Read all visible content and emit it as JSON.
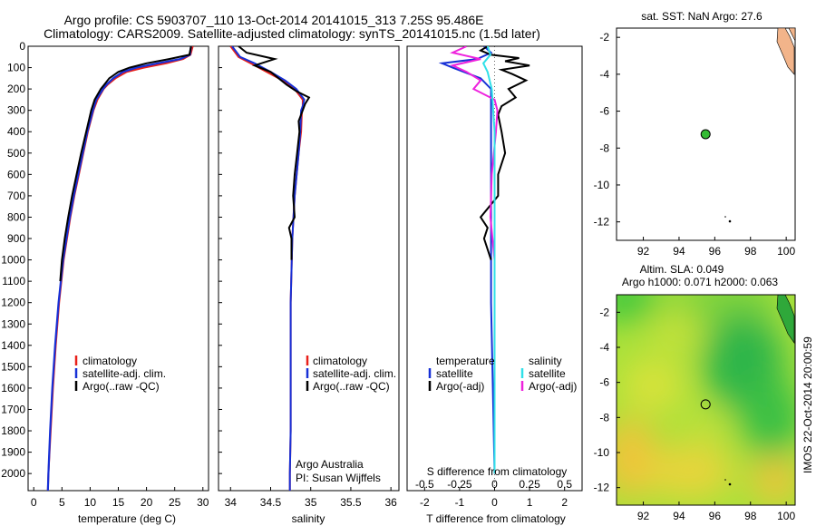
{
  "title_line1": "Argo profile: CS 5903707_110 13-Oct-2014 20141015_313 7.25S 95.486E",
  "title_line2": "Climatology: CARS2009. Satellite-adjusted climatology: synTS_20141015.nc (1.5d later)",
  "side_label": "IMOS 22-Oct-2014 20:00:59",
  "colors": {
    "climatology": "#e8201a",
    "satellite": "#1730d6",
    "argo": "#000000",
    "cyan": "#30e0e8",
    "magenta": "#ee22dd",
    "land": "#f2b48a",
    "float": "#33bb33"
  },
  "chart_data": [
    {
      "type": "line",
      "panel": "temperature",
      "xlabel": "temperature (deg C)",
      "xlim": [
        -1,
        31
      ],
      "xticks": [
        "0",
        "5",
        "10",
        "15",
        "20",
        "25",
        "30"
      ],
      "ylim": [
        0,
        2080
      ],
      "yticks": [
        "0",
        "100",
        "200",
        "300",
        "400",
        "500",
        "600",
        "700",
        "800",
        "900",
        "1000",
        "1100",
        "1200",
        "1300",
        "1400",
        "1500",
        "1600",
        "1700",
        "1800",
        "1900",
        "2000"
      ],
      "legend": [
        "climatology",
        "satellite-adj. clim.",
        "Argo(..raw -QC)"
      ],
      "series": [
        {
          "name": "climatology",
          "depth": [
            0,
            40,
            60,
            80,
            100,
            120,
            150,
            180,
            200,
            250,
            300,
            400,
            500,
            600,
            700,
            800,
            900,
            1000,
            1200,
            1400,
            1600,
            1800,
            2000,
            2080
          ],
          "values": [
            28.2,
            27.8,
            26.5,
            23.5,
            19.5,
            16.5,
            14.5,
            13.1,
            12.4,
            11.3,
            10.6,
            9.6,
            8.8,
            8.0,
            7.2,
            6.5,
            5.9,
            5.3,
            4.5,
            3.9,
            3.4,
            3.0,
            2.6,
            2.5
          ]
        },
        {
          "name": "satellite-adj. clim.",
          "depth": [
            0,
            40,
            60,
            80,
            100,
            120,
            150,
            180,
            200,
            250,
            300,
            400,
            500,
            600,
            700,
            800,
            900,
            1000,
            1200,
            1400,
            1600,
            1800,
            2000,
            2080
          ],
          "values": [
            27.9,
            27.7,
            26.0,
            22.0,
            18.2,
            15.8,
            14.1,
            12.9,
            12.3,
            11.1,
            10.5,
            9.5,
            8.7,
            7.9,
            7.1,
            6.4,
            5.8,
            5.2,
            4.4,
            3.8,
            3.3,
            2.9,
            2.6,
            2.5
          ]
        },
        {
          "name": "Argo(..raw -QC)",
          "depth": [
            0,
            40,
            60,
            80,
            100,
            120,
            150,
            180,
            200,
            250,
            300,
            400,
            500,
            600,
            700,
            800,
            900,
            1000,
            1100
          ],
          "values": [
            27.9,
            27.6,
            24.0,
            20.0,
            17.0,
            15.0,
            13.4,
            12.5,
            11.9,
            10.8,
            10.2,
            9.3,
            8.4,
            7.6,
            6.8,
            6.1,
            5.5,
            5.0,
            4.7
          ]
        }
      ]
    },
    {
      "type": "line",
      "panel": "salinity",
      "xlabel": "salinity",
      "xlim": [
        33.85,
        36.1
      ],
      "xticks": [
        "34",
        "34.5",
        "35",
        "35.5",
        "36"
      ],
      "ylim": [
        0,
        2080
      ],
      "legend": [
        "climatology",
        "satellite-adj. clim.",
        "Argo(..raw -QC)"
      ],
      "notes": [
        "Argo Australia",
        "PI: Susan Wijffels"
      ],
      "series": [
        {
          "name": "climatology",
          "depth": [
            0,
            50,
            80,
            120,
            160,
            200,
            250,
            280,
            300,
            400,
            500,
            700,
            900,
            1200,
            1500,
            1800,
            2000,
            2080
          ],
          "values": [
            34.0,
            34.1,
            34.25,
            34.45,
            34.65,
            34.8,
            34.9,
            34.9,
            34.89,
            34.88,
            34.85,
            34.8,
            34.77,
            34.75,
            34.75,
            34.75,
            34.74,
            34.74
          ]
        },
        {
          "name": "satellite-adj. clim.",
          "depth": [
            0,
            50,
            80,
            120,
            160,
            200,
            250,
            280,
            300,
            400,
            500,
            700,
            900,
            1200,
            1500,
            1800,
            2000,
            2080
          ],
          "values": [
            34.02,
            34.12,
            34.3,
            34.5,
            34.68,
            34.82,
            34.92,
            34.9,
            34.88,
            34.87,
            34.85,
            34.8,
            34.77,
            34.75,
            34.75,
            34.75,
            34.74,
            34.74
          ]
        },
        {
          "name": "Argo(..raw -QC)",
          "depth": [
            0,
            30,
            60,
            90,
            120,
            150,
            180,
            210,
            240,
            270,
            300,
            350,
            400,
            500,
            600,
            700,
            800,
            850,
            900,
            1000
          ],
          "values": [
            34.1,
            34.2,
            34.55,
            34.3,
            34.5,
            34.6,
            34.7,
            34.82,
            34.98,
            34.93,
            34.9,
            34.85,
            34.86,
            34.83,
            34.8,
            34.78,
            34.8,
            34.73,
            34.76,
            34.76
          ]
        }
      ]
    },
    {
      "type": "line",
      "panel": "difference",
      "xlabel": "T difference from climatology",
      "xlabel_top": "S difference from climatology",
      "xlim_T": [
        -2.5,
        2.5
      ],
      "xticks_T": [
        "-2",
        "-1",
        "0",
        "1",
        "2"
      ],
      "xticks_S": [
        "-0.5",
        "-0.25",
        "0",
        "0.25",
        "0.5"
      ],
      "ylim": [
        0,
        2080
      ],
      "legend_temperature": [
        "temperature",
        "satellite",
        "Argo(-adj)"
      ],
      "legend_salinity": [
        "salinity",
        "satellite",
        "Argo(-adj)"
      ],
      "series": [
        {
          "name": "temperature satellite",
          "depth": [
            0,
            30,
            60,
            80,
            100,
            150,
            200,
            300,
            500,
            800,
            1200,
            1600,
            2000
          ],
          "values": [
            -0.3,
            -0.1,
            -0.5,
            -1.5,
            -1.2,
            -0.4,
            -0.1,
            -0.1,
            -0.1,
            -0.1,
            -0.1,
            -0.05,
            0
          ]
        },
        {
          "name": "temperature Argo(-adj)",
          "depth": [
            0,
            20,
            40,
            55,
            70,
            90,
            110,
            130,
            160,
            200,
            240,
            280,
            320,
            400,
            500,
            600,
            700,
            800,
            850,
            900,
            1000
          ],
          "values": [
            -0.2,
            -0.4,
            -0.1,
            0.7,
            0.3,
            1.0,
            0.2,
            0.5,
            0.9,
            0.4,
            0.6,
            0.2,
            0.1,
            0.2,
            0.3,
            0.1,
            0.1,
            -0.4,
            -0.2,
            -0.3,
            -0.1
          ]
        },
        {
          "name": "salinity satellite",
          "depth": [
            0,
            40,
            80,
            120,
            200,
            400,
            800,
            1200,
            1600,
            2000
          ],
          "values": [
            -0.05,
            -0.03,
            -0.08,
            -0.05,
            -0.02,
            0,
            0,
            0,
            0,
            0
          ]
        },
        {
          "name": "salinity Argo(-adj)",
          "depth": [
            0,
            30,
            60,
            90,
            120,
            160,
            200,
            250,
            300,
            400,
            600,
            800,
            1000
          ],
          "values": [
            -0.2,
            -0.3,
            -0.1,
            -0.3,
            -0.2,
            -0.1,
            -0.15,
            0,
            0.02,
            0.01,
            -0.02,
            -0.03,
            0
          ]
        }
      ]
    },
    {
      "type": "scatter",
      "panel": "map-sst",
      "title": "sat. SST: NaN Argo: 27.6",
      "xlim": [
        90.5,
        100.5
      ],
      "ylim": [
        -13,
        -1.5
      ],
      "xticks": [
        "92",
        "94",
        "96",
        "98",
        "100"
      ],
      "yticks": [
        "-2",
        "-4",
        "-6",
        "-8",
        "-10",
        "-12"
      ],
      "points": [
        {
          "lon": 95.486,
          "lat": -7.25
        }
      ]
    },
    {
      "type": "heatmap",
      "panel": "map-sla",
      "title_line1": "Altim. SLA: 0.049",
      "title_line2": "Argo h1000: 0.071 h2000: 0.063",
      "xlim": [
        90.5,
        100.5
      ],
      "ylim": [
        -13,
        -1
      ],
      "xticks": [
        "92",
        "94",
        "96",
        "98",
        "100"
      ],
      "yticks": [
        "-2",
        "-4",
        "-6",
        "-8",
        "-10",
        "-12"
      ],
      "points": [
        {
          "lon": 95.486,
          "lat": -7.25
        }
      ]
    }
  ]
}
